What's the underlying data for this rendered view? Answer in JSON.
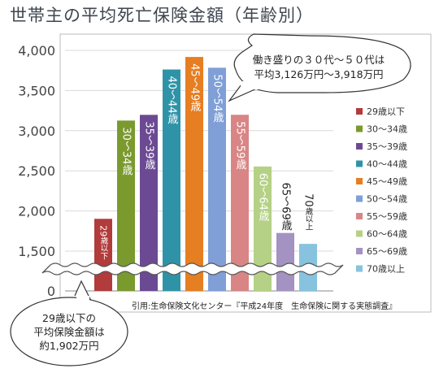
{
  "title": "世帯主の平均死亡保険金額（年齢別）",
  "callout_top": {
    "line1": "働き盛りの３０代～５０代は",
    "line2": "平均3,126万円～3,918万円"
  },
  "callout_bottom": {
    "line1": "29歳以下の",
    "line2": "平均保険金額は",
    "line3": "約1,902万円"
  },
  "source": "引用:生命保険文化センター『平成24年度　生命保険に関する実態調査』",
  "colors": {
    "axis_text": "#444444",
    "grid": "#d9d9d9",
    "frame": "#bbbbbb",
    "callout_border": "#333333"
  },
  "chart_data": {
    "type": "bar",
    "title": "世帯主の平均死亡保険金額（年齢別）",
    "xlabel": "",
    "ylabel": "",
    "y_ticks": [
      "4,000",
      "3,500",
      "3,000",
      "2,500",
      "2,000",
      "1,500",
      "0"
    ],
    "y_tick_values": [
      4000,
      3500,
      3000,
      2500,
      2000,
      1500,
      0
    ],
    "axis_break": "between 0 and 1,500",
    "ylim": [
      1300,
      4000
    ],
    "grid": true,
    "legend_position": "right",
    "categories": [
      "29歳以下",
      "30～34歳",
      "35～39歳",
      "40～44歳",
      "45～49歳",
      "50～54歳",
      "55～59歳",
      "60～64歳",
      "65～69歳",
      "70歳以上"
    ],
    "values": [
      1902,
      3126,
      3197,
      3762,
      3918,
      3784,
      3198,
      2554,
      1726,
      1590
    ],
    "colors": [
      "#b23b3b",
      "#7a9a2e",
      "#6b4a93",
      "#2f93a8",
      "#e67e22",
      "#7f9fd6",
      "#d98585",
      "#b5d185",
      "#a492c2",
      "#87c3de"
    ],
    "bar_labels": [
      {
        "top": "29",
        "rest": "歳以下"
      },
      {
        "top": "30～34歳",
        "rest": ""
      },
      {
        "top": "35～39歳",
        "rest": ""
      },
      {
        "top": "40～44歳",
        "rest": ""
      },
      {
        "top": "45～49歳",
        "rest": ""
      },
      {
        "top": "50～54歳",
        "rest": ""
      },
      {
        "top": "55～59歳",
        "rest": ""
      },
      {
        "top": "60～64歳",
        "rest": ""
      },
      {
        "top": "65～69歳",
        "rest": ""
      },
      {
        "top": "70",
        "rest": "歳以上"
      }
    ]
  }
}
